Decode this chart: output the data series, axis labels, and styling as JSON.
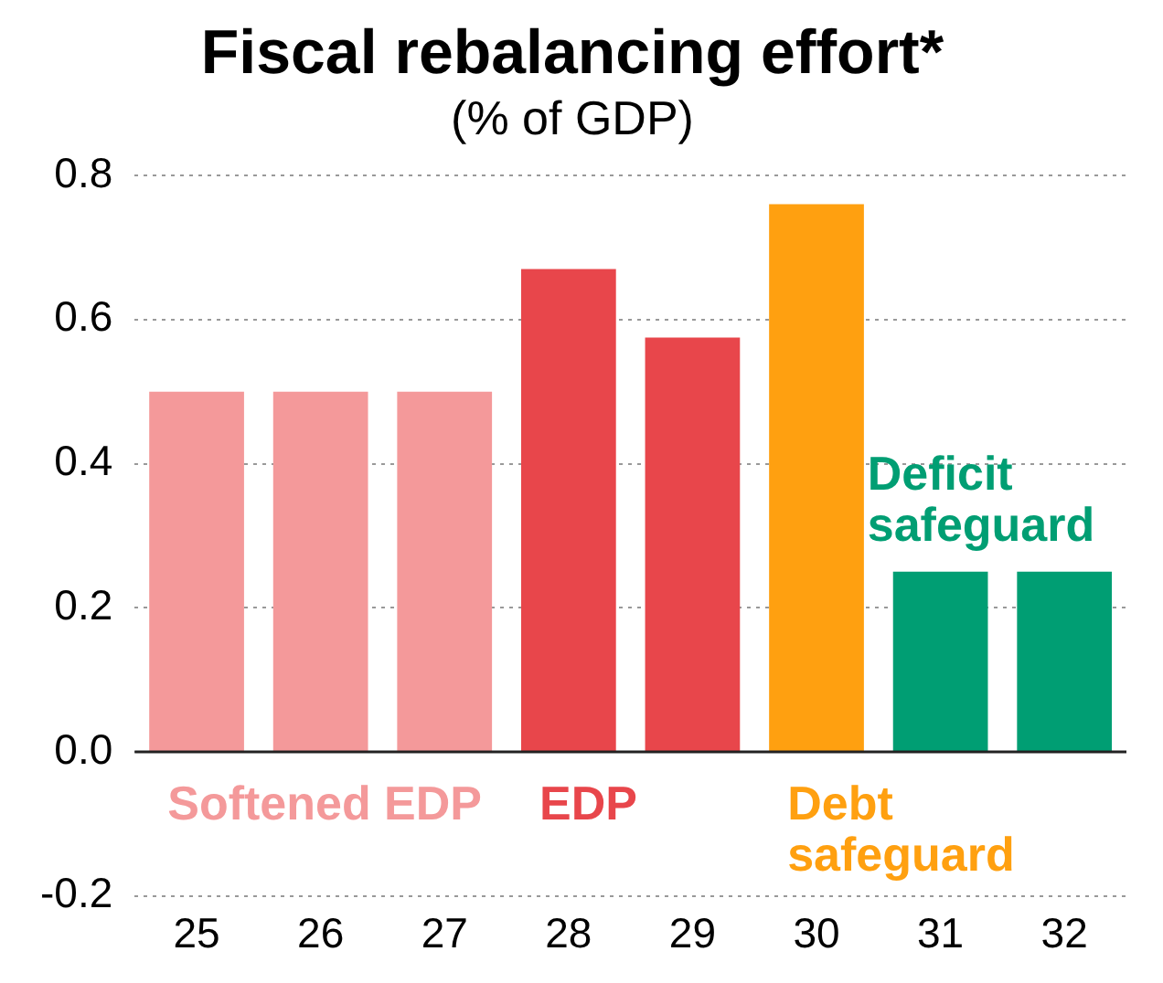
{
  "chart_data": {
    "type": "bar",
    "title": "Fiscal rebalancing effort*",
    "subtitle": "(% of GDP)",
    "categories": [
      "25",
      "26",
      "27",
      "28",
      "29",
      "30",
      "31",
      "32"
    ],
    "values": [
      0.5,
      0.5,
      0.5,
      0.67,
      0.575,
      0.76,
      0.25,
      0.25
    ],
    "colors": [
      "#f4999a",
      "#f4999a",
      "#f4999a",
      "#e8464b",
      "#e8464b",
      "#ffa010",
      "#009e73",
      "#009e73"
    ],
    "ylim": [
      -0.2,
      0.8
    ],
    "yticks": [
      -0.2,
      {
        "value": 0,
        "label": "0.0"
      },
      0.2,
      0.4,
      0.6,
      0.8
    ],
    "grid": "y",
    "legend": false,
    "annotations": [
      "Softened EDP",
      "EDP",
      "Debt\nsafeguard",
      "Deficit\nsafeguard"
    ]
  }
}
